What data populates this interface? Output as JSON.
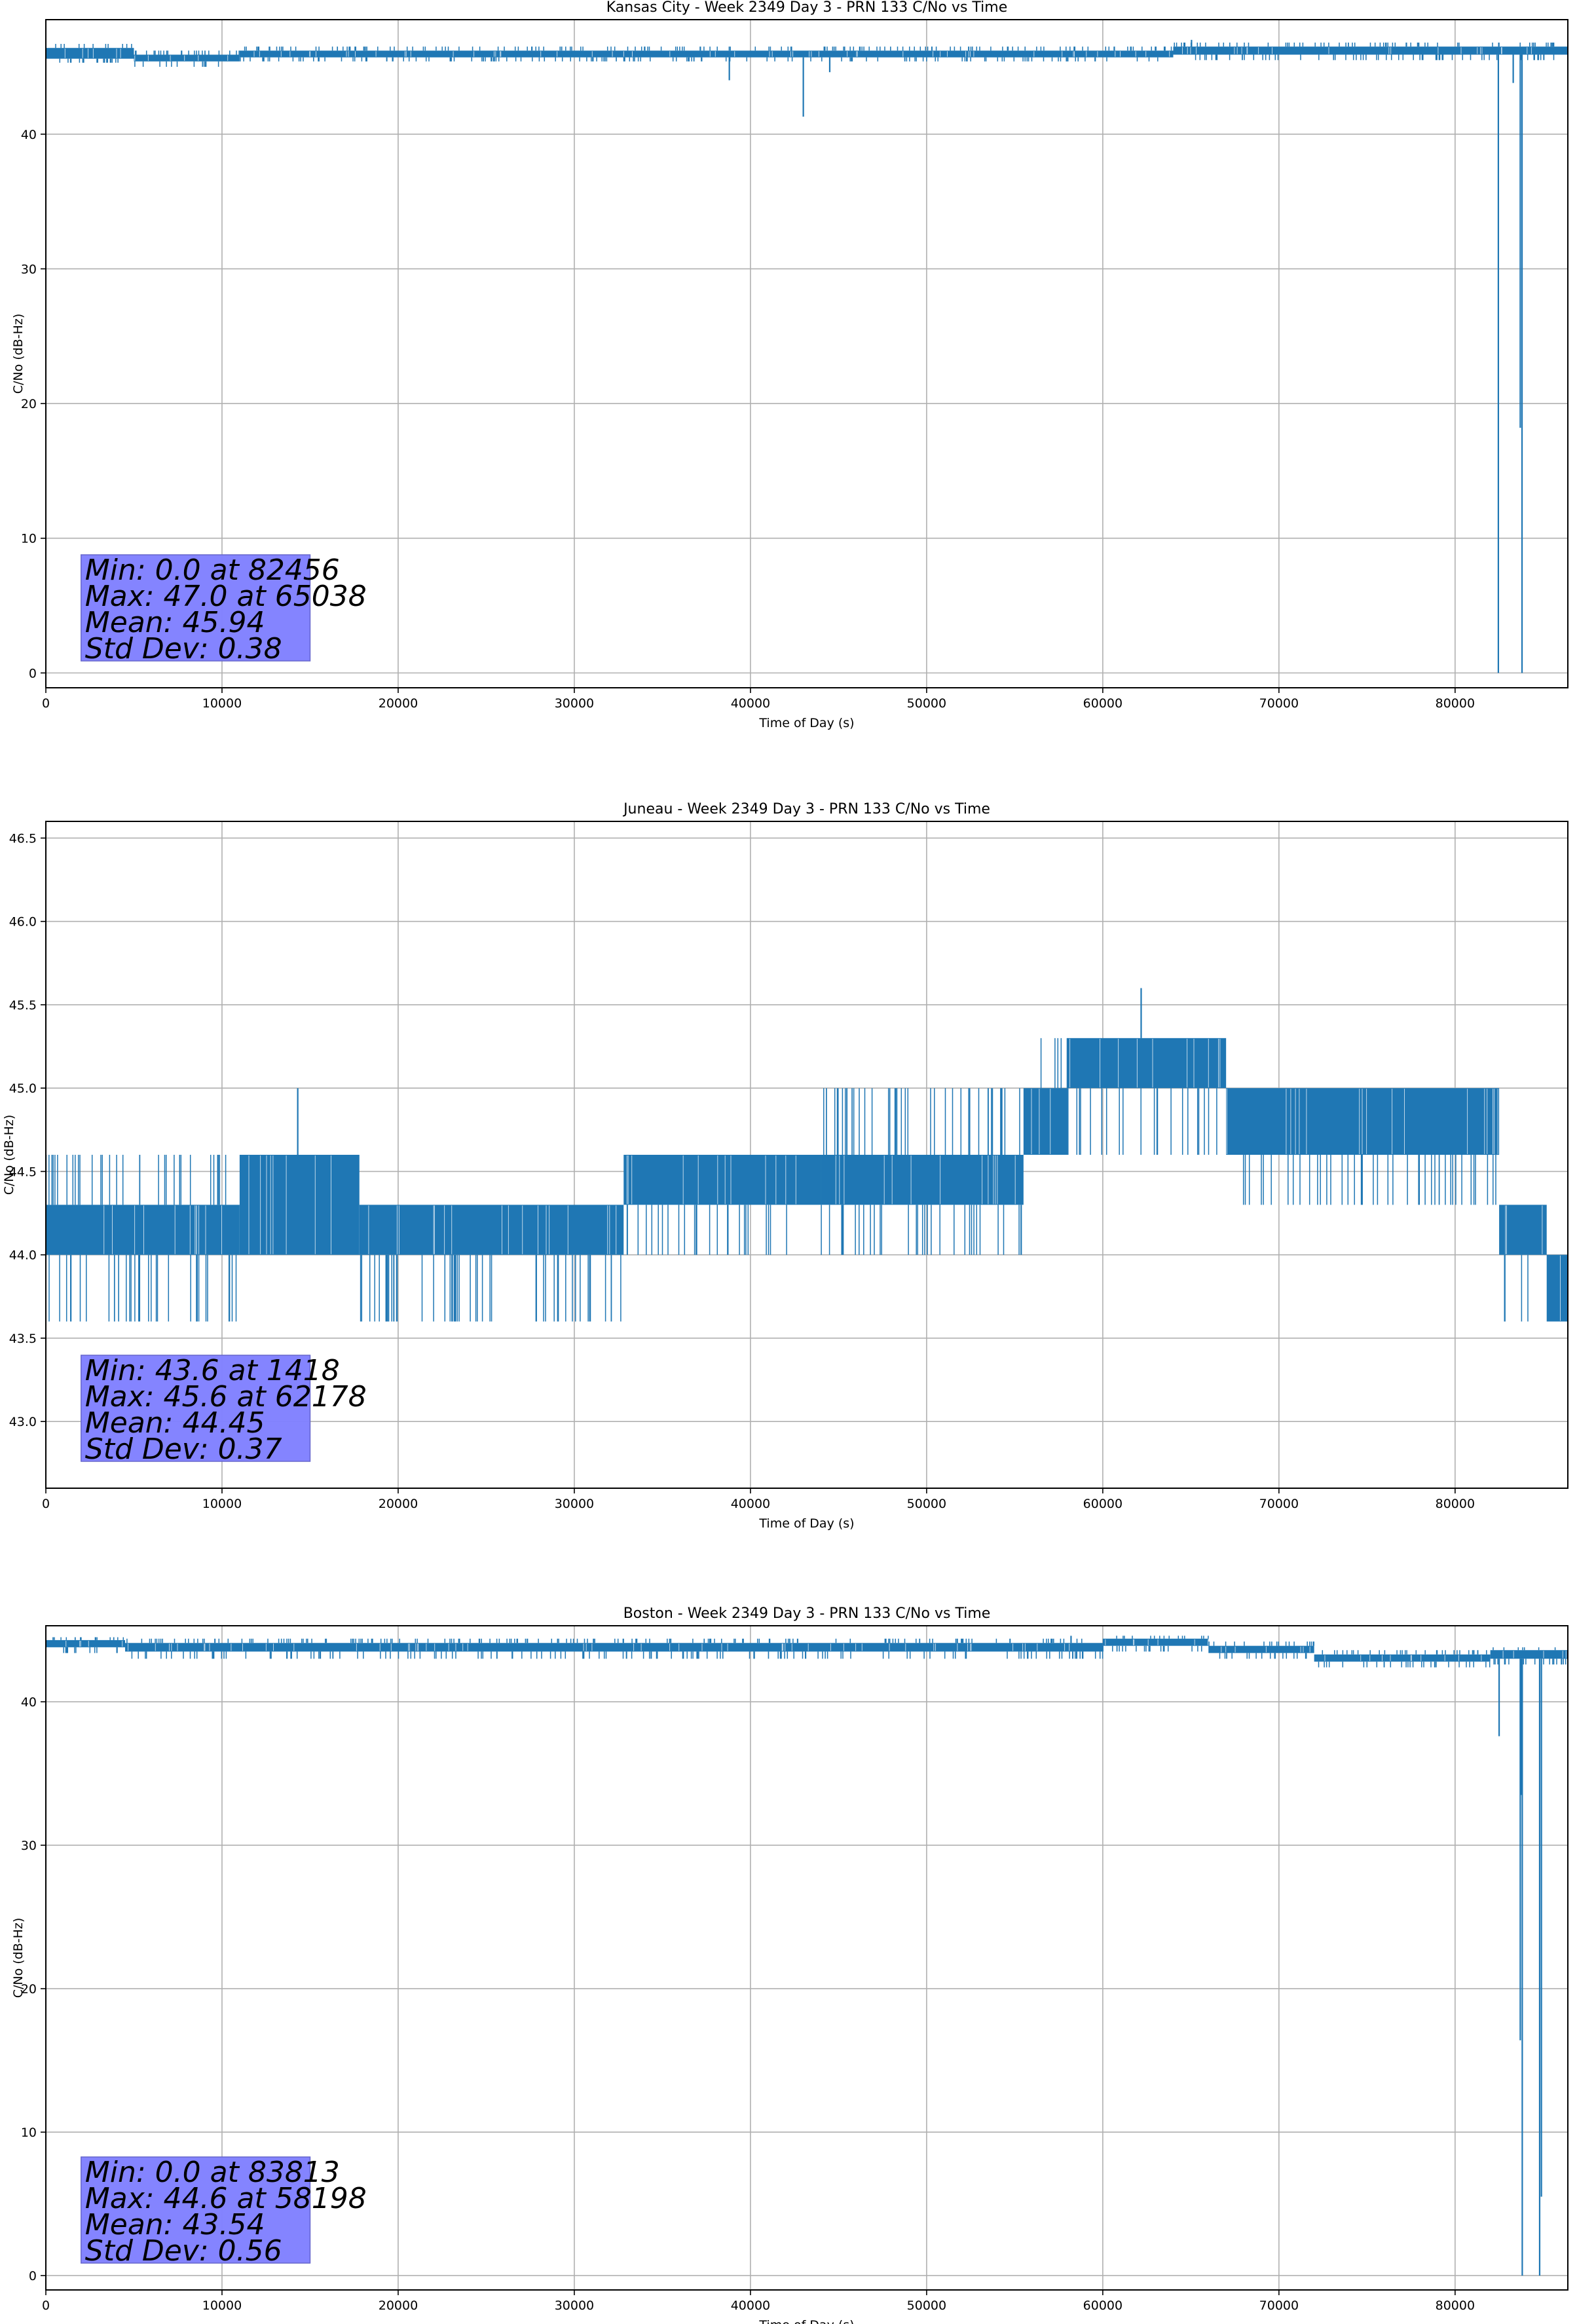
{
  "chart_data": [
    {
      "type": "line",
      "title": "Kansas City - Week 2349 Day 3 - PRN 133 C/No vs Time",
      "xlabel": "Time of Day (s)",
      "ylabel": "C/No (dB-Hz)",
      "xlim": [
        0,
        86400
      ],
      "ylim": [
        -1.1,
        48.5
      ],
      "xticks": [
        "0",
        "10000",
        "20000",
        "30000",
        "40000",
        "50000",
        "60000",
        "70000",
        "80000"
      ],
      "yticks": [
        "0",
        "10",
        "20",
        "30",
        "40"
      ],
      "grid": true,
      "line_color": "#1f77b4",
      "stats_box_color": "#8080ff",
      "stats": [
        "Min: 0.0 at 82456",
        "Max: 47.0 at 65038",
        "Mean: 45.94",
        "Std Dev: 0.38"
      ],
      "segments": [
        {
          "x0": 0,
          "x1": 5000,
          "low": 45.6,
          "high": 46.4,
          "dip": 45.3,
          "peak": 46.7
        },
        {
          "x0": 5000,
          "x1": 11000,
          "low": 45.4,
          "high": 45.9,
          "dip": 45.0,
          "peak": 46.2
        },
        {
          "x0": 11000,
          "x1": 64000,
          "low": 45.7,
          "high": 46.2,
          "dip": 45.4,
          "peak": 46.5
        },
        {
          "x0": 64000,
          "x1": 86400,
          "low": 45.9,
          "high": 46.5,
          "dip": 45.5,
          "peak": 46.8
        }
      ],
      "spikes": [
        {
          "x": 38800,
          "y": 44.0
        },
        {
          "x": 43000,
          "y": 41.3
        },
        {
          "x": 44500,
          "y": 44.6
        },
        {
          "x": 65038,
          "y": 47.0
        },
        {
          "x": 82456,
          "y": 0.0
        },
        {
          "x": 83300,
          "y": 43.8
        },
        {
          "x": 83700,
          "y": 18.2
        },
        {
          "x": 83800,
          "y": 0.0
        }
      ]
    },
    {
      "type": "line",
      "title": "Juneau - Week 2349 Day 3 - PRN 133 C/No vs Time",
      "xlabel": "Time of Day (s)",
      "ylabel": "C/No (dB-Hz)",
      "xlim": [
        0,
        86400
      ],
      "ylim": [
        42.6,
        46.6
      ],
      "xticks": [
        "0",
        "10000",
        "20000",
        "30000",
        "40000",
        "50000",
        "60000",
        "70000",
        "80000"
      ],
      "yticks": [
        "43.0",
        "43.5",
        "44.0",
        "44.5",
        "45.0",
        "45.5",
        "46.0",
        "46.5"
      ],
      "grid": true,
      "line_color": "#1f77b4",
      "stats_box_color": "#8080ff",
      "stats": [
        "Min: 43.6 at 1418",
        "Max: 45.6 at 62178",
        "Mean: 44.45",
        "Std Dev: 0.37"
      ],
      "segments": [
        {
          "x0": 0,
          "x1": 11000,
          "low": 44.0,
          "high": 44.3,
          "dip": 43.6,
          "peak": 44.6
        },
        {
          "x0": 11000,
          "x1": 17800,
          "low": 44.0,
          "high": 44.6,
          "dip": 44.0,
          "peak": 44.6
        },
        {
          "x0": 17800,
          "x1": 32800,
          "low": 44.0,
          "high": 44.3,
          "dip": 43.6,
          "peak": 44.3
        },
        {
          "x0": 32800,
          "x1": 44000,
          "low": 44.3,
          "high": 44.6,
          "dip": 44.0,
          "peak": 44.6
        },
        {
          "x0": 44000,
          "x1": 55500,
          "low": 44.3,
          "high": 44.6,
          "dip": 44.0,
          "peak": 45.0
        },
        {
          "x0": 55500,
          "x1": 58000,
          "low": 44.6,
          "high": 45.0,
          "dip": 44.6,
          "peak": 45.3
        },
        {
          "x0": 58000,
          "x1": 67000,
          "low": 45.0,
          "high": 45.3,
          "dip": 44.6,
          "peak": 45.3
        },
        {
          "x0": 67000,
          "x1": 82500,
          "low": 44.6,
          "high": 45.0,
          "dip": 44.3,
          "peak": 45.0
        },
        {
          "x0": 82500,
          "x1": 85200,
          "low": 44.0,
          "high": 44.3,
          "dip": 43.6,
          "peak": 44.3
        },
        {
          "x0": 85200,
          "x1": 86400,
          "low": 43.6,
          "high": 44.0,
          "dip": 43.6,
          "peak": 44.0
        }
      ],
      "spikes": [
        {
          "x": 14300,
          "y": 45.0
        },
        {
          "x": 62178,
          "y": 45.6
        },
        {
          "x": 1418,
          "y": 43.6
        }
      ]
    },
    {
      "type": "line",
      "title": "Boston - Week 2349 Day 3 - PRN 133 C/No vs Time",
      "xlabel": "Time of Day (s)",
      "ylabel": "C/No (dB-Hz)",
      "xlim": [
        0,
        86400
      ],
      "ylim": [
        -1.0,
        45.3
      ],
      "xticks": [
        "0",
        "10000",
        "20000",
        "30000",
        "40000",
        "50000",
        "60000",
        "70000",
        "80000"
      ],
      "yticks": [
        "0",
        "10",
        "20",
        "30",
        "40"
      ],
      "grid": true,
      "line_color": "#1f77b4",
      "stats_box_color": "#8080ff",
      "stats": [
        "Min: 0.0 at 83813",
        "Max: 44.6 at 58198",
        "Mean: 43.54",
        "Std Dev: 0.56"
      ],
      "segments": [
        {
          "x0": 0,
          "x1": 4500,
          "low": 43.8,
          "high": 44.3,
          "dip": 43.4,
          "peak": 44.5
        },
        {
          "x0": 4500,
          "x1": 60000,
          "low": 43.5,
          "high": 44.1,
          "dip": 43.0,
          "peak": 44.4
        },
        {
          "x0": 60000,
          "x1": 66000,
          "low": 43.9,
          "high": 44.4,
          "dip": 43.5,
          "peak": 44.6
        },
        {
          "x0": 66000,
          "x1": 72000,
          "low": 43.4,
          "high": 43.9,
          "dip": 43.0,
          "peak": 44.2
        },
        {
          "x0": 72000,
          "x1": 82000,
          "low": 42.8,
          "high": 43.3,
          "dip": 42.4,
          "peak": 43.6
        },
        {
          "x0": 82000,
          "x1": 86400,
          "low": 43.0,
          "high": 43.6,
          "dip": 42.6,
          "peak": 43.8
        }
      ],
      "spikes": [
        {
          "x": 58198,
          "y": 44.6
        },
        {
          "x": 82500,
          "y": 37.6
        },
        {
          "x": 83700,
          "y": 16.4
        },
        {
          "x": 83750,
          "y": 33.5
        },
        {
          "x": 83813,
          "y": 0.0
        },
        {
          "x": 84800,
          "y": 0.0
        },
        {
          "x": 84900,
          "y": 5.5
        }
      ]
    }
  ]
}
